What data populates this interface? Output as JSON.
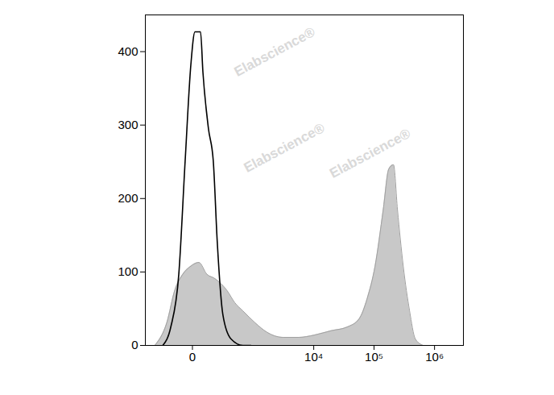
{
  "chart_data": {
    "type": "line",
    "annotations": [
      "Elabscience®"
    ],
    "log": "x",
    "xlim": [
      -500,
      3000000
    ],
    "xticks": [
      0,
      {
        "value": 10000,
        "label": "10⁴"
      },
      {
        "value": 100000,
        "label": "10⁵"
      },
      {
        "value": 1000000,
        "label": "10⁶"
      }
    ],
    "ylim": [
      0,
      450
    ],
    "yticks": [
      0,
      100,
      200,
      300,
      400
    ],
    "grid": false,
    "series": [
      {
        "type": "area",
        "color": "#c8c8c8",
        "x": [
          -318,
          -165,
          -96,
          -44,
          -6,
          28,
          73,
          135,
          271,
          403,
          582,
          980,
          1603,
          3035,
          5670,
          10100,
          19400,
          35700,
          56500,
          77100,
          104000,
          142000,
          175000,
          210000,
          244000,
          304000,
          387000,
          481000,
          650000
        ],
        "values": [
          0,
          31,
          75,
          97,
          108,
          113,
          97,
          91,
          75,
          58,
          47,
          31,
          18,
          11,
          11,
          14,
          20,
          25,
          36,
          64,
          108,
          185,
          240,
          246,
          185,
          108,
          47,
          9,
          0
        ]
      },
      {
        "type": "line",
        "color": "#000000",
        "x": [
          -209,
          -128,
          -68,
          -32,
          -6,
          10,
          36,
          49,
          84,
          121,
          157,
          218,
          331,
          582,
          824
        ],
        "values": [
          0,
          25,
          97,
          251,
          383,
          427,
          427,
          372,
          295,
          251,
          141,
          42,
          9,
          0,
          0
        ]
      }
    ]
  }
}
